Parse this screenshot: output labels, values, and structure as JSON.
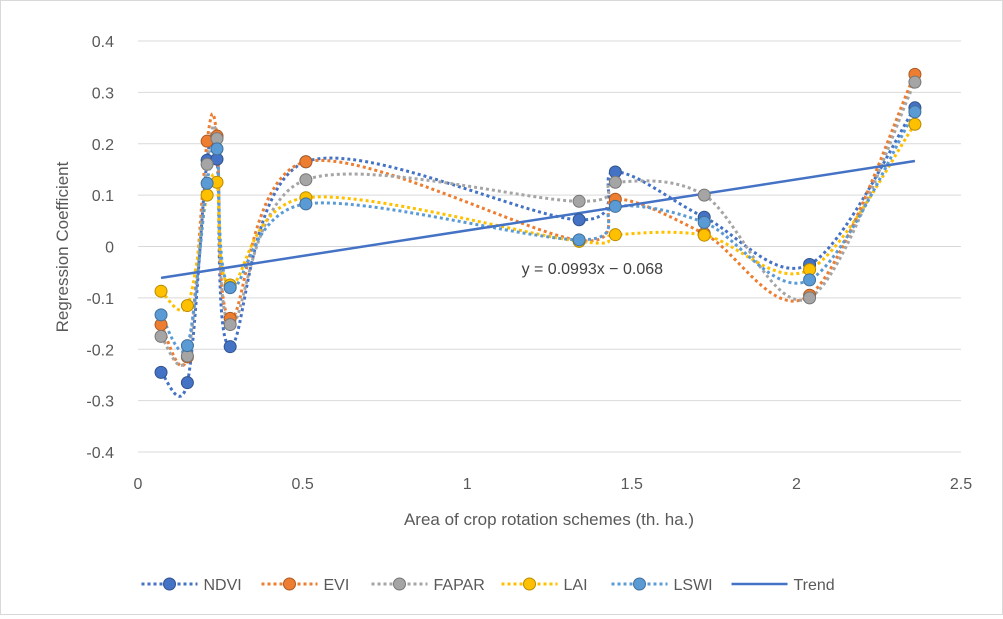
{
  "chart_data": {
    "type": "scatter",
    "title": "",
    "xlabel": "Area of crop rotation schemes (th. ha.)",
    "ylabel": "Regression Coefficient",
    "xlim": [
      0,
      2.5
    ],
    "ylim": [
      -0.4,
      0.4
    ],
    "x_ticks": [
      0,
      0.5,
      1,
      1.5,
      2,
      2.5
    ],
    "x_tick_labels": [
      "0",
      "0.5",
      "1",
      "1.5",
      "2",
      "2.5"
    ],
    "y_ticks": [
      -0.4,
      -0.3,
      -0.2,
      -0.1,
      0,
      0.1,
      0.2,
      0.3,
      0.4
    ],
    "y_tick_labels": [
      "-0.4",
      "-0.3",
      "-0.2",
      "-0.1",
      "0",
      "0.1",
      "0.2",
      "0.3",
      "0.4"
    ],
    "grid": "horizontal",
    "legend_position": "bottom",
    "x": [
      0.07,
      0.15,
      0.21,
      0.24,
      0.28,
      0.51,
      1.34,
      1.45,
      1.72,
      2.04,
      2.36
    ],
    "series": [
      {
        "name": "NDVI",
        "color": "#4472c4",
        "style": "dotted-smooth-markers",
        "values": [
          -0.245,
          -0.265,
          0.168,
          0.17,
          -0.195,
          0.165,
          0.052,
          0.145,
          0.057,
          -0.035,
          0.27
        ]
      },
      {
        "name": "EVI",
        "color": "#ed7d31",
        "style": "dotted-smooth-markers",
        "values": [
          -0.152,
          -0.215,
          0.205,
          0.215,
          -0.14,
          0.165,
          0.012,
          0.092,
          0.025,
          -0.095,
          0.335
        ]
      },
      {
        "name": "FAPAR",
        "color": "#a5a5a5",
        "style": "dotted-smooth-markers",
        "values": [
          -0.175,
          -0.213,
          0.16,
          0.21,
          -0.152,
          0.13,
          0.088,
          0.125,
          0.1,
          -0.1,
          0.32
        ]
      },
      {
        "name": "LAI",
        "color": "#ffc000",
        "style": "dotted-smooth-markers",
        "values": [
          -0.087,
          -0.115,
          0.1,
          0.125,
          -0.075,
          0.095,
          0.01,
          0.023,
          0.022,
          -0.045,
          0.238
        ]
      },
      {
        "name": "LSWI",
        "color": "#5b9bd5",
        "style": "dotted-smooth-markers",
        "values": [
          -0.133,
          -0.193,
          0.123,
          0.19,
          -0.08,
          0.083,
          0.013,
          0.078,
          0.047,
          -0.065,
          0.262
        ]
      }
    ],
    "trend": {
      "name": "Trend",
      "color": "#4472c4",
      "slope": 0.0993,
      "intercept": -0.068,
      "x_range": [
        0.07,
        2.36
      ]
    },
    "annotations": [
      {
        "text": "y = 0.0993x − 0.068",
        "x": 1.38,
        "y": -0.042
      }
    ]
  }
}
